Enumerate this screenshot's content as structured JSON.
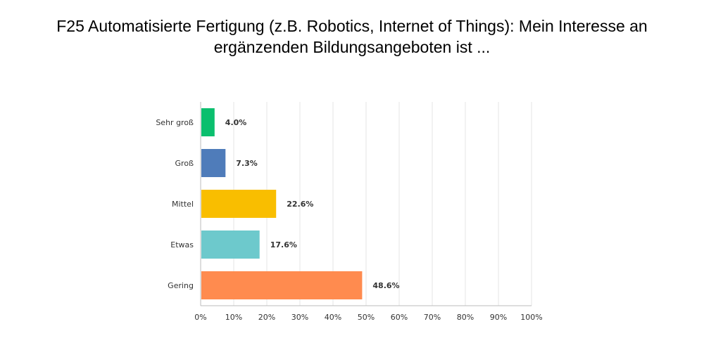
{
  "chart_data": {
    "type": "bar",
    "orientation": "horizontal",
    "title": [
      "F25 Automatisierte Fertigung (z.B. Robotics, Internet of Things): Mein Interesse an",
      "ergänzenden Bildungsangeboten ist ..."
    ],
    "categories": [
      "Sehr groß",
      "Groß",
      "Mittel",
      "Etwas",
      "Gering"
    ],
    "values": [
      4.0,
      7.3,
      22.6,
      17.6,
      48.6
    ],
    "value_labels": [
      "4.0%",
      "7.3%",
      "22.6%",
      "17.6%",
      "48.6%"
    ],
    "colors": [
      "#0bbf6e",
      "#4f7cba",
      "#f9be00",
      "#6dc9cc",
      "#ff8b4f"
    ],
    "xlim": [
      0,
      100
    ],
    "xticks": [
      "0%",
      "10%",
      "20%",
      "30%",
      "40%",
      "50%",
      "60%",
      "70%",
      "80%",
      "90%",
      "100%"
    ],
    "grid": true,
    "legend": "none"
  }
}
